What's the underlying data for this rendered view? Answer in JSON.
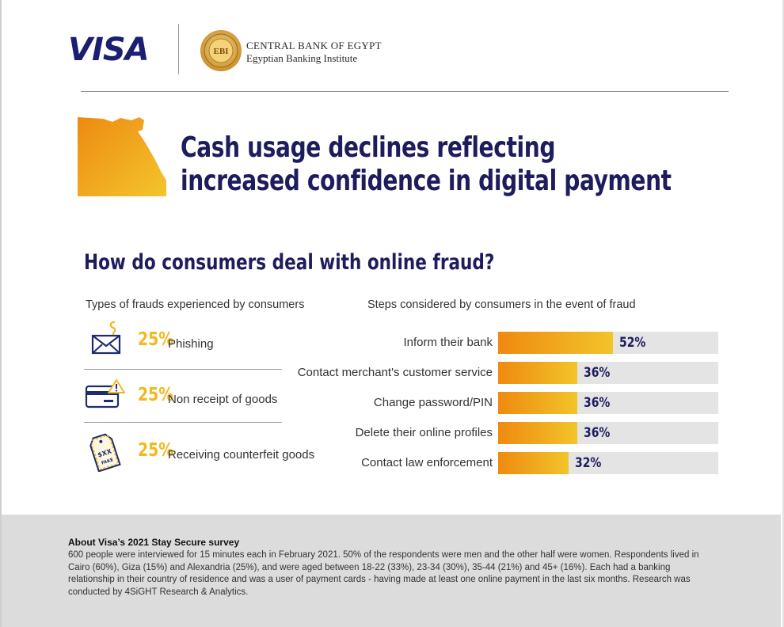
{
  "header": {
    "visa_logo_text": "VISA",
    "cbe_line1": "CENTRAL BANK OF EGYPT",
    "cbe_line2": "Egyptian Banking Institute",
    "seal_text": "EBI"
  },
  "headline": {
    "line1": "Cash usage declines reflecting",
    "line2": "increased confidence in digital payment"
  },
  "section_title": "How do consumers deal with online fraud?",
  "fraud_types": {
    "heading": "Types of frauds experienced by consumers",
    "items": [
      {
        "pct": "25%",
        "label": "Phishing",
        "icon": "phishing-envelope-icon"
      },
      {
        "pct": "25%",
        "label": "Non receipt of goods",
        "icon": "card-warning-icon"
      },
      {
        "pct": "25%",
        "label": "Receiving counterfeit goods",
        "icon": "fake-tag-icon"
      }
    ],
    "counterfeit_tag_text": "$XX",
    "counterfeit_tag_sub": "FAKE"
  },
  "chart_data": {
    "type": "bar",
    "title": "Steps considered by consumers in the event of fraud",
    "categories": [
      "Inform their bank",
      "Contact merchant's customer service",
      "Change password/PIN",
      "Delete their online profiles",
      "Contact law enforcement"
    ],
    "values": [
      52,
      36,
      36,
      36,
      32
    ],
    "value_labels": [
      "52%",
      "36%",
      "36%",
      "36%",
      "32%"
    ],
    "orientation": "horizontal",
    "xlim": [
      0,
      100
    ],
    "grid": false,
    "legend": "none"
  },
  "footer": {
    "title": "About Visa’s 2021 Stay Secure survey",
    "body": "600 people were interviewed for 15 minutes each in February 2021. 50% of the respondents were men and the other half were women. Respondents lived in Cairo (60%), Giza (15%) and Alexandria (25%), and were aged between 18-22 (33%), 23-34 (30%), 35-44 (21%) and 45+ (16%). Each had a banking relationship in their country of residence and was a user of payment cards - having made at least one online payment in the last six months. Research was conducted by 4SiGHT Research & Analytics."
  },
  "colors": {
    "navy": "#1d1d5e",
    "gold": "#f2b81c",
    "orange": "#ef8a10",
    "track": "#e4e4e4"
  }
}
